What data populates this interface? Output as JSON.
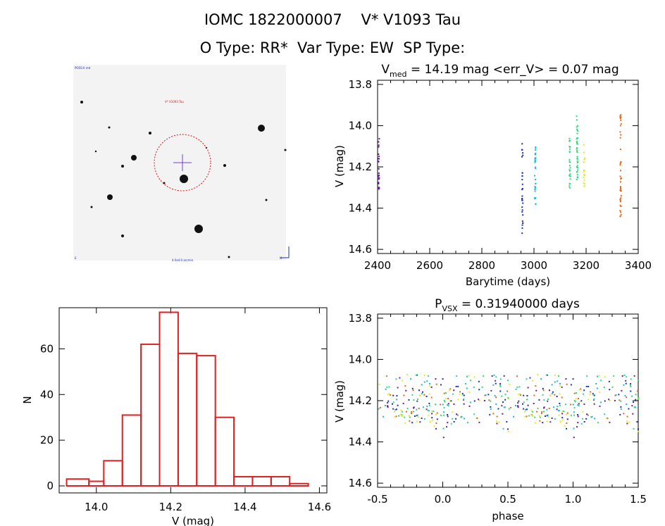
{
  "header": {
    "line1": "IOMC 1822000007    V* V1093 Tau",
    "line2": "O Type: RR*  Var Type: EW  SP Type:"
  },
  "finder": {
    "label_top_left": "POSS-II red",
    "target_label": "V* V1093 Tau",
    "label_bottom": "4.0x4.0 arcmin",
    "label_left_bottom": "E",
    "label_right_bottom": "N",
    "circle_color": "#e01010",
    "cross_color": "#7a3fbf"
  },
  "colors": {
    "hist": "#e02020",
    "palette": [
      "#6a1b9a",
      "#1a2bbf",
      "#18b8d8",
      "#2ed880",
      "#e8e820",
      "#e06818",
      "#c01818"
    ]
  },
  "chart_data": [
    {
      "type": "scatter",
      "title": "V_med = 14.19 mag <err_V> = 0.07 mag",
      "title_parts": {
        "main": "V",
        "sub": "med",
        "rest": " = 14.19 mag <err_V> = 0.07 mag"
      },
      "xlabel": "Barytime (days)",
      "ylabel": "V (mag)",
      "xlim": [
        2400,
        3400
      ],
      "ylim": [
        14.62,
        13.78
      ],
      "xticks": [
        "2400",
        "2600",
        "2800",
        "3000",
        "3200",
        "3400"
      ],
      "xtick_values": [
        2400,
        2600,
        2800,
        3000,
        3200,
        3400
      ],
      "yticks": [
        "13.8",
        "14.0",
        "14.2",
        "14.4",
        "14.6"
      ],
      "ytick_values": [
        13.8,
        14.0,
        14.2,
        14.4,
        14.6
      ],
      "y_inverted": true,
      "clusters": [
        {
          "x": 2402,
          "ymin": 14.06,
          "ymax": 14.32,
          "n": 25,
          "color": 0
        },
        {
          "x": 2953,
          "ymin": 14.08,
          "ymax": 14.52,
          "n": 30,
          "color": 1
        },
        {
          "x": 3002,
          "ymin": 14.1,
          "ymax": 14.38,
          "n": 30,
          "color": 2
        },
        {
          "x": 3135,
          "ymin": 14.05,
          "ymax": 14.3,
          "n": 28,
          "color": 3
        },
        {
          "x": 3163,
          "ymin": 13.95,
          "ymax": 14.26,
          "n": 38,
          "color": 3
        },
        {
          "x": 3190,
          "ymin": 14.09,
          "ymax": 14.3,
          "n": 20,
          "color": 4
        },
        {
          "x": 3330,
          "ymin": 13.92,
          "ymax": 14.46,
          "n": 40,
          "color": 5
        }
      ]
    },
    {
      "type": "bar",
      "xlabel": "V (mag)",
      "ylabel": "N",
      "xlim": [
        13.9,
        14.62
      ],
      "ylim": [
        0,
        78
      ],
      "xticks": [
        "14.0",
        "14.2",
        "14.4",
        "14.6"
      ],
      "xtick_values": [
        14.0,
        14.2,
        14.4,
        14.6
      ],
      "yticks": [
        "0",
        "20",
        "40",
        "60"
      ],
      "ytick_values": [
        0,
        20,
        40,
        60
      ],
      "bin_edges": [
        13.92,
        13.98,
        14.02,
        14.07,
        14.12,
        14.17,
        14.22,
        14.27,
        14.32,
        14.37,
        14.42,
        14.47,
        14.52,
        14.57
      ],
      "values": [
        3,
        2,
        11,
        31,
        62,
        76,
        58,
        57,
        30,
        4,
        4,
        4,
        1
      ]
    },
    {
      "type": "scatter",
      "title": "P_VSX = 0.31940000 days",
      "title_parts": {
        "main": "P",
        "sub": "VSX",
        "rest": " = 0.31940000 days"
      },
      "xlabel": "phase",
      "ylabel": "V (mag)",
      "xlim": [
        -0.5,
        1.5
      ],
      "ylim": [
        14.62,
        13.78
      ],
      "xticks": [
        "-0.5",
        "0.0",
        "0.5",
        "1.0",
        "1.5"
      ],
      "xtick_values": [
        -0.5,
        0.0,
        0.5,
        1.0,
        1.5
      ],
      "yticks": [
        "13.8",
        "14.0",
        "14.2",
        "14.4",
        "14.6"
      ],
      "ytick_values": [
        13.8,
        14.0,
        14.2,
        14.4,
        14.6
      ],
      "y_inverted": true,
      "n_points": 240,
      "y_center": 14.19,
      "y_spread": 0.12
    }
  ]
}
